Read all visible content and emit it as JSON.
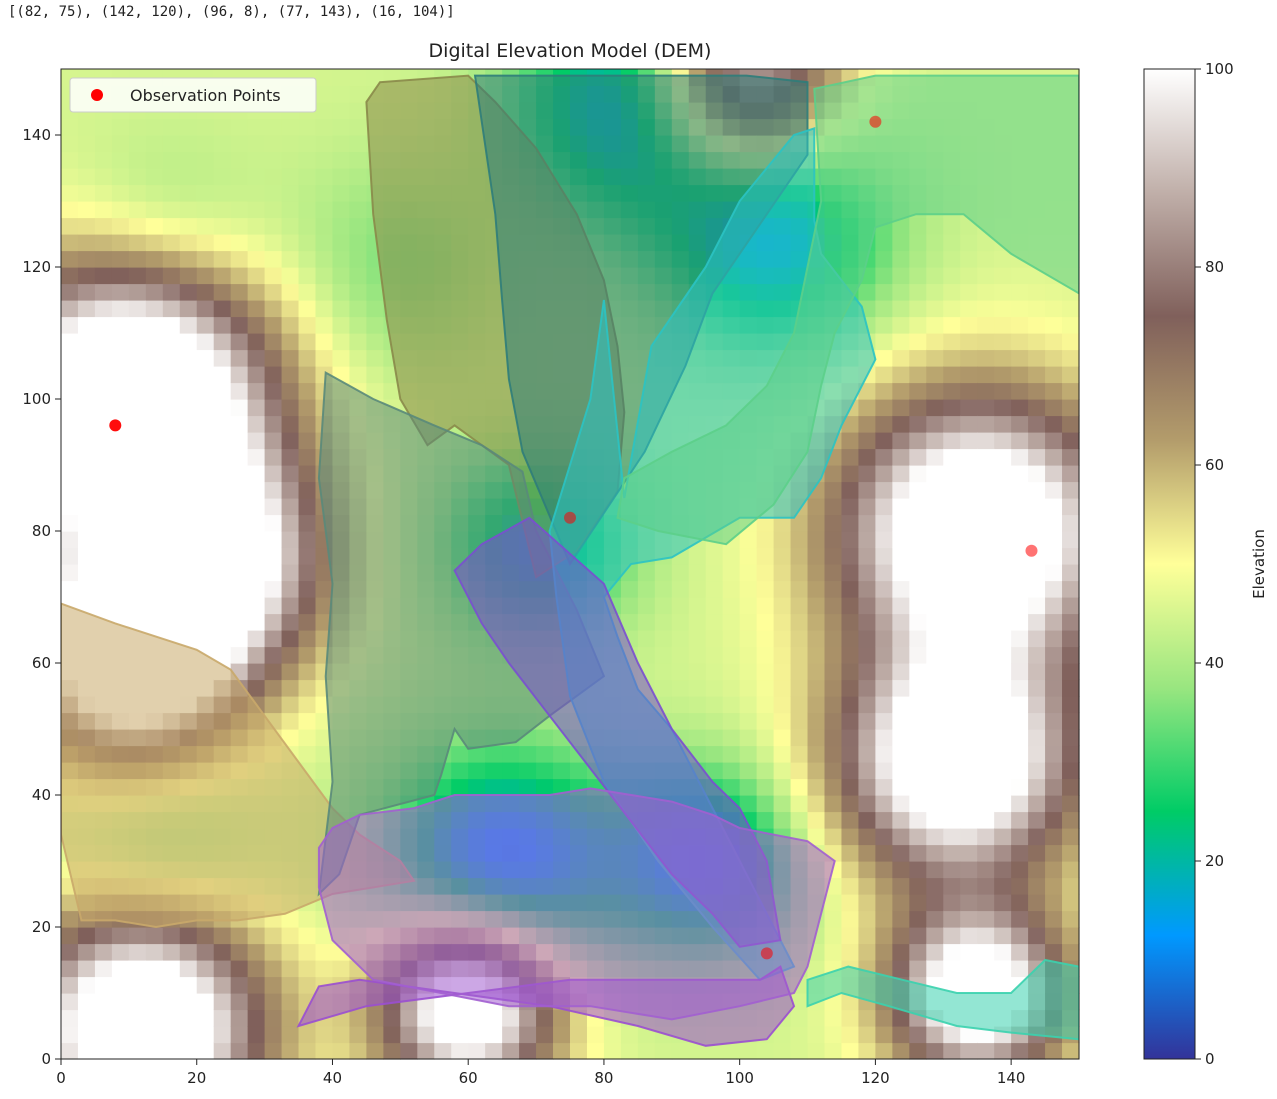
{
  "console_output": "[(82, 75), (142, 120), (96, 8), (77, 143), (16, 104)]",
  "chart_data": {
    "type": "heatmap",
    "title": "Digital Elevation Model (DEM)",
    "xlim": [
      0,
      150
    ],
    "ylim": [
      0,
      150
    ],
    "x_ticks": [
      "0",
      "20",
      "40",
      "60",
      "80",
      "100",
      "120",
      "140"
    ],
    "y_ticks": [
      "0",
      "20",
      "40",
      "60",
      "80",
      "100",
      "120",
      "140"
    ],
    "colormap": "terrain",
    "colorbar": {
      "label": "Elevation",
      "range": [
        0,
        100
      ],
      "ticks": [
        "0",
        "20",
        "40",
        "60",
        "80",
        "100"
      ],
      "stops": [
        "#333399",
        "#0099ff",
        "#00cc66",
        "#99e680",
        "#ffff99",
        "#b39c6b",
        "#80605b",
        "#c0afa9",
        "#ffffff"
      ]
    },
    "elevation_hills": [
      {
        "x": 10,
        "y": 100,
        "h": 90,
        "s": 14
      },
      {
        "x": 10,
        "y": 60,
        "h": 70,
        "s": 10
      },
      {
        "x": 20,
        "y": 75,
        "h": 75,
        "s": 12
      },
      {
        "x": 12,
        "y": 5,
        "h": 80,
        "s": 12
      },
      {
        "x": 60,
        "y": 8,
        "h": 72,
        "s": 9
      },
      {
        "x": 135,
        "y": 80,
        "h": 80,
        "s": 14
      },
      {
        "x": 132,
        "y": 45,
        "h": 75,
        "s": 12
      },
      {
        "x": 135,
        "y": 10,
        "h": 70,
        "s": 9
      },
      {
        "x": 100,
        "y": 148,
        "h": 55,
        "s": 10
      },
      {
        "x": 85,
        "y": 145,
        "h": -35,
        "s": 12
      },
      {
        "x": 105,
        "y": 125,
        "h": -30,
        "s": 12
      },
      {
        "x": 70,
        "y": 78,
        "h": -25,
        "s": 10
      },
      {
        "x": 65,
        "y": 30,
        "h": -35,
        "s": 12
      },
      {
        "x": 95,
        "y": 30,
        "h": -30,
        "s": 10
      },
      {
        "x": 15,
        "y": 30,
        "h": -10,
        "s": 10
      },
      {
        "x": 15,
        "y": 125,
        "h": -10,
        "s": 10
      },
      {
        "x": 50,
        "y": 120,
        "h": -10,
        "s": 12
      }
    ],
    "regions": [
      {
        "color": "#c9a96a",
        "points": [
          [
            0,
            69
          ],
          [
            8,
            66
          ],
          [
            20,
            62
          ],
          [
            25,
            59
          ],
          [
            30,
            52
          ],
          [
            35,
            45
          ],
          [
            40,
            38
          ],
          [
            44,
            34
          ],
          [
            50,
            30
          ],
          [
            52,
            27
          ],
          [
            40,
            25
          ],
          [
            33,
            22
          ],
          [
            26,
            21
          ],
          [
            20,
            21
          ],
          [
            14,
            20
          ],
          [
            8,
            21
          ],
          [
            3,
            21
          ],
          [
            0,
            34
          ]
        ]
      },
      {
        "color": "#8a8a4a",
        "points": [
          [
            45,
            145
          ],
          [
            47,
            148
          ],
          [
            60,
            149
          ],
          [
            64,
            145
          ],
          [
            70,
            138
          ],
          [
            76,
            128
          ],
          [
            80,
            118
          ],
          [
            82,
            108
          ],
          [
            83,
            98
          ],
          [
            82,
            86
          ],
          [
            76,
            77
          ],
          [
            70,
            73
          ],
          [
            66,
            90
          ],
          [
            62,
            93
          ],
          [
            58,
            96
          ],
          [
            54,
            93
          ],
          [
            50,
            100
          ],
          [
            48,
            112
          ],
          [
            46,
            128
          ]
        ]
      },
      {
        "color": "#2f7d7a",
        "points": [
          [
            61,
            149
          ],
          [
            73,
            149
          ],
          [
            87,
            149
          ],
          [
            101,
            149
          ],
          [
            110,
            148
          ],
          [
            110,
            137
          ],
          [
            104,
            128
          ],
          [
            96,
            116
          ],
          [
            92,
            105
          ],
          [
            86,
            92
          ],
          [
            75,
            75
          ],
          [
            68,
            92
          ],
          [
            66,
            103
          ],
          [
            65,
            115
          ],
          [
            64,
            128
          ]
        ]
      },
      {
        "color": "#5a8a7a",
        "points": [
          [
            39,
            104
          ],
          [
            46,
            100
          ],
          [
            55,
            96
          ],
          [
            62,
            93
          ],
          [
            68,
            89
          ],
          [
            70,
            80
          ],
          [
            76,
            68
          ],
          [
            80,
            58
          ],
          [
            72,
            52
          ],
          [
            67,
            48
          ],
          [
            60,
            47
          ],
          [
            58,
            50
          ],
          [
            56,
            43
          ],
          [
            55,
            40
          ],
          [
            44,
            37
          ],
          [
            41,
            28
          ],
          [
            38,
            25
          ],
          [
            40,
            42
          ],
          [
            39,
            58
          ],
          [
            40,
            72
          ],
          [
            38,
            88
          ]
        ]
      },
      {
        "color": "#2bc3c3",
        "points": [
          [
            83,
            85
          ],
          [
            87,
            108
          ],
          [
            95,
            120
          ],
          [
            100,
            130
          ],
          [
            108,
            140
          ],
          [
            111,
            141
          ],
          [
            111,
            127
          ],
          [
            112,
            122
          ],
          [
            118,
            114
          ],
          [
            120,
            106
          ],
          [
            115,
            96
          ],
          [
            112,
            88
          ],
          [
            108,
            82
          ],
          [
            100,
            82
          ],
          [
            90,
            76
          ],
          [
            84,
            75
          ],
          [
            80,
            70
          ],
          [
            82,
            64
          ],
          [
            85,
            56
          ],
          [
            90,
            50
          ],
          [
            95,
            40
          ],
          [
            100,
            30
          ],
          [
            105,
            20
          ],
          [
            108,
            14
          ],
          [
            103,
            12
          ],
          [
            96,
            20
          ],
          [
            88,
            30
          ],
          [
            80,
            42
          ],
          [
            75,
            55
          ],
          [
            73,
            70
          ],
          [
            72,
            80
          ],
          [
            75,
            90
          ],
          [
            78,
            100
          ],
          [
            80,
            115
          ]
        ]
      },
      {
        "color": "#7a4fd0",
        "points": [
          [
            58,
            74
          ],
          [
            62,
            78
          ],
          [
            69,
            82
          ],
          [
            80,
            72
          ],
          [
            85,
            60
          ],
          [
            90,
            50
          ],
          [
            96,
            42
          ],
          [
            100,
            38
          ],
          [
            104,
            30
          ],
          [
            106,
            18
          ],
          [
            100,
            17
          ],
          [
            96,
            22
          ],
          [
            90,
            28
          ],
          [
            84,
            36
          ],
          [
            78,
            44
          ],
          [
            72,
            52
          ],
          [
            66,
            60
          ],
          [
            62,
            66
          ]
        ]
      },
      {
        "color": "#9a4fd0",
        "points": [
          [
            35,
            5
          ],
          [
            45,
            8
          ],
          [
            60,
            10
          ],
          [
            75,
            12
          ],
          [
            87,
            12
          ],
          [
            95,
            12
          ],
          [
            103,
            12
          ],
          [
            106,
            14
          ],
          [
            108,
            8
          ],
          [
            104,
            3
          ],
          [
            95,
            2
          ],
          [
            85,
            5
          ],
          [
            72,
            8
          ],
          [
            58,
            10
          ],
          [
            44,
            12
          ],
          [
            38,
            11
          ]
        ]
      },
      {
        "color": "#a25fd0",
        "points": [
          [
            40,
            35
          ],
          [
            44,
            37
          ],
          [
            52,
            38
          ],
          [
            58,
            40
          ],
          [
            65,
            40
          ],
          [
            72,
            40
          ],
          [
            78,
            41
          ],
          [
            84,
            40
          ],
          [
            90,
            39
          ],
          [
            96,
            37
          ],
          [
            100,
            35
          ],
          [
            110,
            33
          ],
          [
            114,
            30
          ],
          [
            112,
            22
          ],
          [
            110,
            14
          ],
          [
            108,
            10
          ],
          [
            100,
            8
          ],
          [
            90,
            6
          ],
          [
            78,
            8
          ],
          [
            66,
            8
          ],
          [
            56,
            10
          ],
          [
            46,
            12
          ],
          [
            40,
            18
          ],
          [
            38,
            26
          ],
          [
            38,
            32
          ]
        ]
      },
      {
        "color": "#5ccf8a",
        "points": [
          [
            111,
            147
          ],
          [
            120,
            149
          ],
          [
            131,
            149
          ],
          [
            150,
            149
          ],
          [
            150,
            116
          ],
          [
            140,
            122
          ],
          [
            133,
            128
          ],
          [
            126,
            128
          ],
          [
            120,
            126
          ],
          [
            118,
            118
          ],
          [
            114,
            110
          ],
          [
            112,
            102
          ],
          [
            110,
            92
          ],
          [
            105,
            84
          ],
          [
            98,
            78
          ],
          [
            93,
            79
          ],
          [
            88,
            80
          ],
          [
            82,
            82
          ],
          [
            83,
            88
          ],
          [
            90,
            92
          ],
          [
            98,
            96
          ],
          [
            104,
            102
          ],
          [
            108,
            110
          ],
          [
            110,
            120
          ],
          [
            112,
            130
          ]
        ]
      },
      {
        "color": "#3bd2ae",
        "points": [
          [
            110,
            8
          ],
          [
            115,
            10
          ],
          [
            122,
            8
          ],
          [
            132,
            5
          ],
          [
            140,
            4
          ],
          [
            150,
            3
          ],
          [
            150,
            14
          ],
          [
            145,
            15
          ],
          [
            140,
            10
          ],
          [
            132,
            10
          ],
          [
            124,
            12
          ],
          [
            116,
            14
          ],
          [
            110,
            12
          ]
        ]
      }
    ],
    "observation_points": {
      "label": "Observation Points",
      "color": "#ff0000",
      "points": [
        [
          8,
          96
        ],
        [
          75,
          82
        ],
        [
          120,
          142
        ],
        [
          143,
          77
        ],
        [
          104,
          16
        ]
      ]
    }
  }
}
